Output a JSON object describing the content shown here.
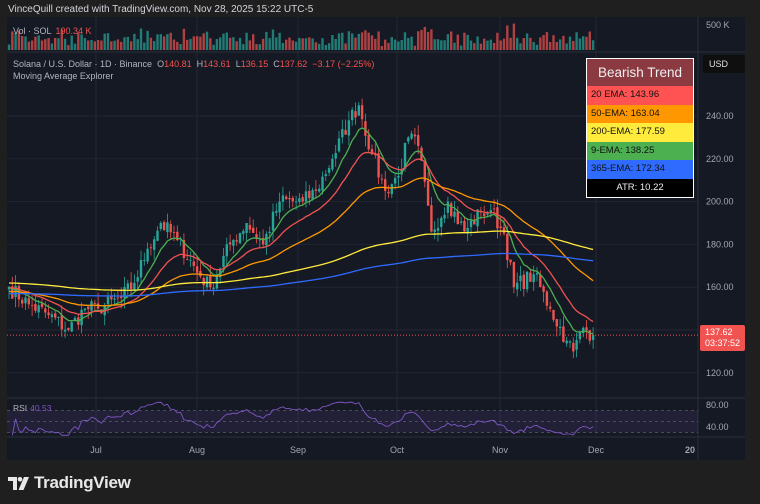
{
  "header": {
    "credit": "VinceQuill created with TradingView.com, Nov 28, 2025 15:22 UTC-5"
  },
  "volume": {
    "label": "Vol · SOL",
    "value": "190.34 K",
    "axis_label": "500 K"
  },
  "symbol": {
    "title": "Solana / U.S. Dollar · 1D · Binance",
    "open_label": "O",
    "open": "140.81",
    "high_label": "H",
    "high": "143.61",
    "low_label": "L",
    "low": "136.15",
    "close_label": "C",
    "close": "137.62",
    "change": "−3.17 (−2.25%)",
    "study": "Moving Average Explorer"
  },
  "legend": {
    "title": "Bearish Trend",
    "rows": [
      {
        "text": "20 EMA: 143.96",
        "color": "#ff5252"
      },
      {
        "text": "50-EMA: 163.04",
        "color": "#ff9800"
      },
      {
        "text": "200-EMA: 177.59",
        "color": "#ffeb3b"
      },
      {
        "text": "9-EMA: 138.25",
        "color": "#4caf50"
      },
      {
        "text": "365-EMA: 172.34",
        "color": "#2f6bff"
      }
    ],
    "atr": "ATR: 10.22"
  },
  "axis": {
    "currency": "USD",
    "last_price": "137.62",
    "countdown": "03:37:52"
  },
  "rsi": {
    "label": "RSI",
    "value": "40.53",
    "ticks": [
      "80.00",
      "40.00"
    ]
  },
  "logo": "TradingView",
  "chart_data": {
    "type": "candlestick",
    "y_ticks": [
      240,
      220,
      200,
      180,
      160,
      120
    ],
    "ylim": [
      113,
      255
    ],
    "x_ticks": [
      "Jul",
      "Aug",
      "Sep",
      "Oct",
      "Nov",
      "Dec",
      "20"
    ],
    "grid": true,
    "colors": {
      "up": "#26a69a",
      "down": "#ef5350"
    },
    "approx_closes": [
      [
        "2025-06-04",
        160
      ],
      [
        "2025-06-10",
        152
      ],
      [
        "2025-06-16",
        147
      ],
      [
        "2025-06-22",
        140
      ],
      [
        "2025-06-27",
        150
      ],
      [
        "2025-07-01",
        150
      ],
      [
        "2025-07-08",
        155
      ],
      [
        "2025-07-12",
        162
      ],
      [
        "2025-07-16",
        178
      ],
      [
        "2025-07-20",
        190
      ],
      [
        "2025-07-25",
        182
      ],
      [
        "2025-08-01",
        165
      ],
      [
        "2025-08-04",
        160
      ],
      [
        "2025-08-10",
        180
      ],
      [
        "2025-08-15",
        190
      ],
      [
        "2025-08-20",
        180
      ],
      [
        "2025-08-25",
        200
      ],
      [
        "2025-09-01",
        200
      ],
      [
        "2025-09-05",
        205
      ],
      [
        "2025-09-10",
        220
      ],
      [
        "2025-09-15",
        238
      ],
      [
        "2025-09-18",
        245
      ],
      [
        "2025-09-22",
        222
      ],
      [
        "2025-09-26",
        205
      ],
      [
        "2025-09-30",
        212
      ],
      [
        "2025-10-03",
        230
      ],
      [
        "2025-10-06",
        226
      ],
      [
        "2025-10-10",
        186
      ],
      [
        "2025-10-15",
        200
      ],
      [
        "2025-10-20",
        186
      ],
      [
        "2025-10-25",
        195
      ],
      [
        "2025-10-28",
        196
      ],
      [
        "2025-11-01",
        185
      ],
      [
        "2025-11-04",
        160
      ],
      [
        "2025-11-10",
        166
      ],
      [
        "2025-11-15",
        150
      ],
      [
        "2025-11-20",
        135
      ],
      [
        "2025-11-22",
        130
      ],
      [
        "2025-11-25",
        141
      ],
      [
        "2025-11-28",
        137.62
      ]
    ],
    "ema_last": {
      "9": 138.25,
      "20": 143.96,
      "50": 163.04,
      "200": 177.59,
      "365": 172.34
    },
    "ema_colors": {
      "9": "#4caf50",
      "20": "#f05350",
      "50": "#ff9800",
      "200": "#ffeb3b",
      "365": "#2f6bff"
    },
    "rsi_last": 40.53
  }
}
